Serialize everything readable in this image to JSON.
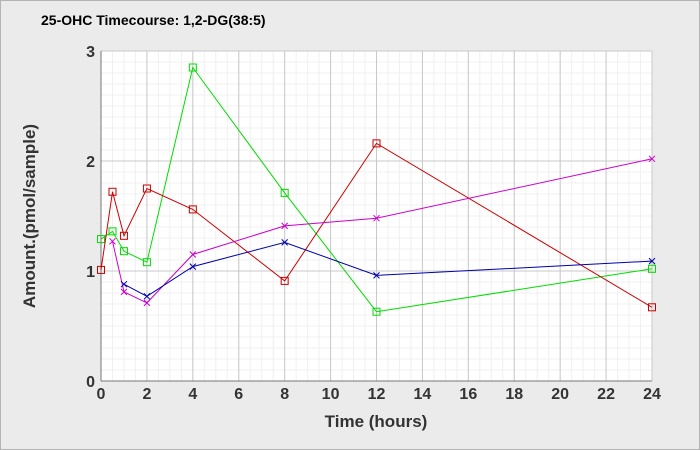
{
  "chart_data": {
    "type": "line",
    "title": "25-OHC Timecourse: 1,2-DG(38:5)",
    "xlabel": "Time (hours)",
    "ylabel": "Amount.(pmol/sample)",
    "xlim": [
      0,
      24
    ],
    "ylim": [
      0,
      3
    ],
    "xticks": [
      0,
      2,
      4,
      6,
      8,
      10,
      12,
      14,
      16,
      18,
      20,
      22,
      24
    ],
    "yticks": [
      0,
      1,
      2,
      3
    ],
    "grid": true,
    "legend": "none",
    "series": [
      {
        "color": "#00dd00",
        "marker": "square",
        "x": [
          0,
          0.5,
          1,
          2,
          4,
          8,
          12,
          24
        ],
        "y": [
          1.29,
          1.36,
          1.18,
          1.08,
          2.85,
          1.71,
          0.63,
          1.02
        ]
      },
      {
        "color": "#cc0000",
        "marker": "square",
        "x": [
          0,
          0.5,
          1,
          2,
          4,
          8,
          12,
          24
        ],
        "y": [
          1.01,
          1.72,
          1.32,
          1.75,
          1.56,
          0.91,
          2.16,
          0.67
        ]
      },
      {
        "color": "#cc00cc",
        "marker": "x",
        "x": [
          0.5,
          1,
          2,
          4,
          8,
          12,
          24
        ],
        "y": [
          1.27,
          0.81,
          0.71,
          1.15,
          1.41,
          1.48,
          2.02
        ]
      },
      {
        "color": "#0000aa",
        "marker": "x",
        "x": [
          1,
          2,
          4,
          8,
          12,
          24
        ],
        "y": [
          0.88,
          0.77,
          1.04,
          1.26,
          0.96,
          1.09
        ]
      }
    ]
  }
}
